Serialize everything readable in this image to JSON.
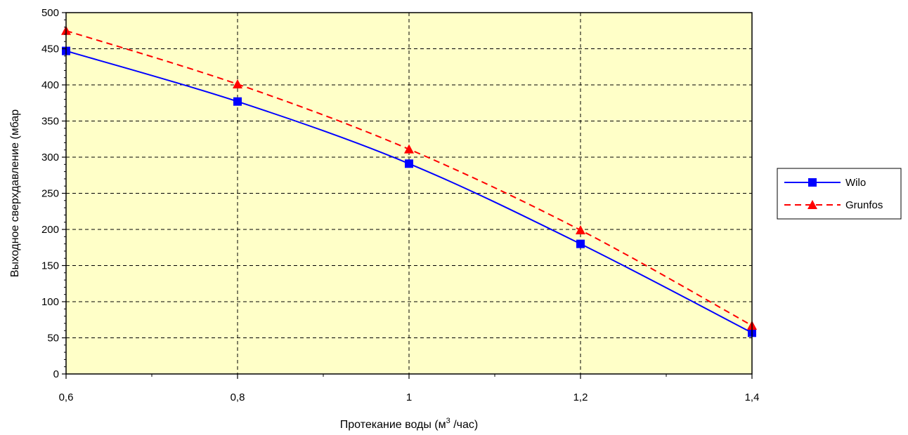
{
  "chart_data": {
    "type": "line",
    "title": "",
    "xlabel": "Протекание воды (м³ /час)",
    "xlabel_parts": {
      "before": "Протекание воды (м",
      "sup": "3",
      "after": " /час)"
    },
    "ylabel": "Выходное сверхдавление (мбар",
    "xlim": [
      0.6,
      1.4
    ],
    "ylim": [
      0,
      500
    ],
    "x_ticks": [
      0.6,
      0.8,
      1.0,
      1.2,
      1.4
    ],
    "x_tick_labels": [
      "0,6",
      "0,8",
      "1",
      "1,2",
      "1,4"
    ],
    "y_ticks": [
      0,
      50,
      100,
      150,
      200,
      250,
      300,
      350,
      400,
      450,
      500
    ],
    "y_tick_labels": [
      "0",
      "50",
      "100",
      "150",
      "200",
      "250",
      "300",
      "350",
      "400",
      "450",
      "500"
    ],
    "grid": true,
    "plot_background": "#ffffc8",
    "legend_position": "right",
    "series": [
      {
        "name": "Wilo",
        "color": "#0000ff",
        "line_style": "solid",
        "marker": "square",
        "x": [
          0.6,
          0.8,
          1.0,
          1.2,
          1.4
        ],
        "y": [
          447,
          377,
          291,
          180,
          57
        ]
      },
      {
        "name": "Grunfos",
        "color": "#ff0000",
        "line_style": "dashed",
        "marker": "triangle",
        "x": [
          0.6,
          0.8,
          1.0,
          1.2,
          1.4
        ],
        "y": [
          475,
          401,
          311,
          199,
          67
        ]
      }
    ]
  }
}
